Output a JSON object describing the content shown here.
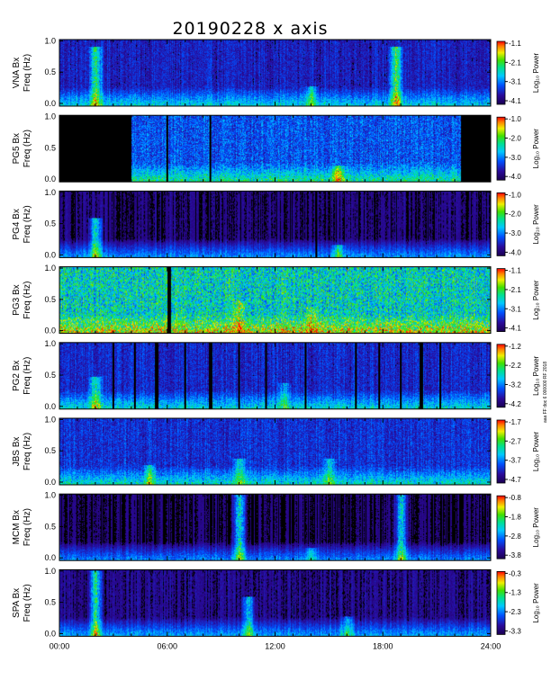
{
  "title": "20190228 x axis",
  "side_note": "aaa FF doc 6 000000 RF 2018",
  "x_axis": {
    "ticks": [
      "00:00",
      "06:00",
      "12:00",
      "18:00",
      "24:00"
    ],
    "range_hours": [
      0,
      24
    ]
  },
  "colorbar_label": "Log₁₀ Power",
  "colors": {
    "background": "#000000",
    "low_power": "#2a0a6e",
    "mid_power": "#1d7fff",
    "high_power": "#ff2000",
    "frame": "#000000"
  },
  "chart_data": [
    {
      "type": "heatmap",
      "station": "VNA Bx",
      "ylabel_line1": "VNA Bx",
      "ylabel_line2": "Freq (Hz)",
      "yticks": [
        "0.0",
        "0.5",
        "1.0"
      ],
      "ylim": [
        0,
        1.0
      ],
      "colorbar_ticks": [
        "-1.1",
        "-2.1",
        "-3.1",
        "-4.1"
      ],
      "zlim": [
        -4.1,
        -1.1
      ],
      "base_level": 0.18,
      "features": [
        "weak broadband",
        "bright burst near 02:00",
        "bright burst near 18:45"
      ]
    },
    {
      "type": "heatmap",
      "station": "PG5 Bx",
      "ylabel_line1": "PG5 Bx",
      "ylabel_line2": "Freq (Hz)",
      "yticks": [
        "0.0",
        "0.5",
        "1.0"
      ],
      "ylim": [
        0,
        1.0
      ],
      "colorbar_ticks": [
        "-1.0",
        "-2.0",
        "-3.0",
        "-4.0"
      ],
      "zlim": [
        -4.0,
        -1.0
      ],
      "base_level": 0.28,
      "features": [
        "data gaps before 04:00 and after 22:00",
        "band near 0.2 Hz 14:00-17:00"
      ]
    },
    {
      "type": "heatmap",
      "station": "PG4 Bx",
      "ylabel_line1": "PG4 Bx",
      "ylabel_line2": "Freq (Hz)",
      "yticks": [
        "0.0",
        "0.5",
        "1.0"
      ],
      "ylim": [
        0,
        1.0
      ],
      "colorbar_ticks": [
        "-1.0",
        "-2.0",
        "-3.0",
        "-4.0"
      ],
      "zlim": [
        -4.0,
        -1.0
      ],
      "base_level": 0.08,
      "features": [
        "mostly low power",
        "band near 0.2 Hz after 14:00"
      ]
    },
    {
      "type": "heatmap",
      "station": "PG3 Bx",
      "ylabel_line1": "PG3 Bx",
      "ylabel_line2": "Freq (Hz)",
      "yticks": [
        "0.0",
        "0.5",
        "1.0"
      ],
      "ylim": [
        0,
        1.0
      ],
      "colorbar_ticks": [
        "-1.1",
        "-2.1",
        "-3.1",
        "-4.1"
      ],
      "zlim": [
        -4.1,
        -1.1
      ],
      "base_level": 0.5,
      "features": [
        "high broadband power all day",
        "gap near 06:00"
      ]
    },
    {
      "type": "heatmap",
      "station": "PG2 Bx",
      "ylabel_line1": "PG2 Bx",
      "ylabel_line2": "Freq (Hz)",
      "yticks": [
        "0.0",
        "0.5",
        "1.0"
      ],
      "ylim": [
        0,
        1.0
      ],
      "colorbar_ticks": [
        "-1.2",
        "-2.2",
        "-3.2",
        "-4.2"
      ],
      "zlim": [
        -4.2,
        -1.2
      ],
      "base_level": 0.2,
      "features": [
        "many short gaps",
        "enhancement near 02:00"
      ]
    },
    {
      "type": "heatmap",
      "station": "JBS Bx",
      "ylabel_line1": "JBS Bx",
      "ylabel_line2": "Freq (Hz)",
      "yticks": [
        "0.0",
        "0.5",
        "1.0"
      ],
      "ylim": [
        0,
        1.0
      ],
      "colorbar_ticks": [
        "-1.7",
        "-2.7",
        "-3.7",
        "-4.7"
      ],
      "zlim": [
        -4.7,
        -1.7
      ],
      "base_level": 0.22,
      "features": [
        "strong low-frequency power all day"
      ]
    },
    {
      "type": "heatmap",
      "station": "MCM Bx",
      "ylabel_line1": "MCM Bx",
      "ylabel_line2": "Freq (Hz)",
      "yticks": [
        "0.0",
        "0.5",
        "1.0"
      ],
      "ylim": [
        0,
        1.0
      ],
      "colorbar_ticks": [
        "-0.8",
        "-1.8",
        "-2.8",
        "-3.8"
      ],
      "zlim": [
        -3.8,
        -0.8
      ],
      "base_level": 0.06,
      "features": [
        "mostly low power",
        "narrow spikes near 10:00 and 19:00"
      ]
    },
    {
      "type": "heatmap",
      "station": "SPA Bx",
      "ylabel_line1": "SPA Bx",
      "ylabel_line2": "Freq (Hz)",
      "yticks": [
        "0.0",
        "0.5",
        "1.0"
      ],
      "ylim": [
        0,
        1.0
      ],
      "colorbar_ticks": [
        "-0.3",
        "-1.3",
        "-2.3",
        "-3.3"
      ],
      "zlim": [
        -3.3,
        -0.3
      ],
      "base_level": 0.1,
      "features": [
        "burst near 02:00",
        "activity 10:00-20:00"
      ]
    }
  ]
}
